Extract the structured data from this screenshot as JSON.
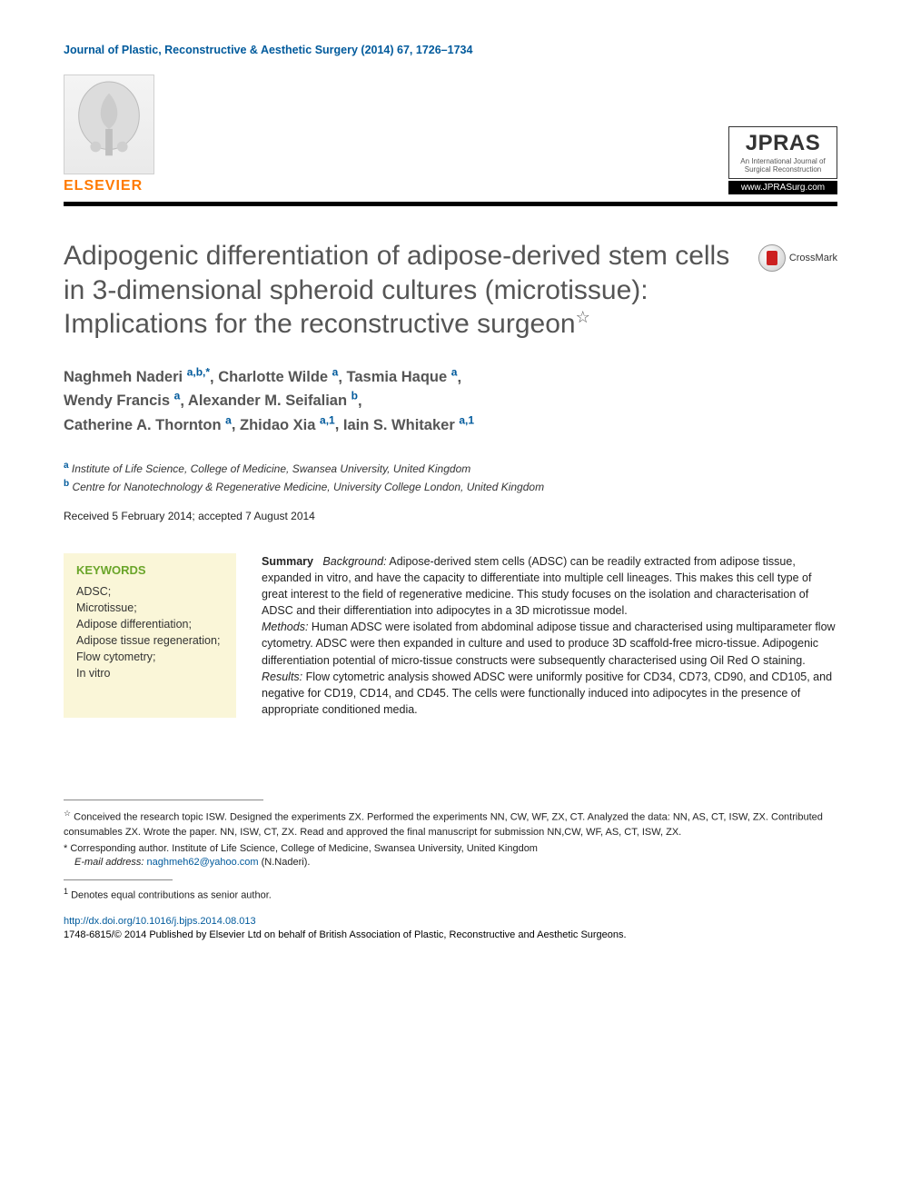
{
  "running_head": "Journal of Plastic, Reconstructive & Aesthetic Surgery (2014) 67, 1726–1734",
  "publisher_logo_text": "ELSEVIER",
  "journal_logo": {
    "title": "JPRAS",
    "subtitle1": "An International Journal of",
    "subtitle2": "Surgical Reconstruction",
    "url": "www.JPRASurg.com"
  },
  "crossmark_label": "CrossMark",
  "article_title": "Adipogenic differentiation of adipose-derived stem cells in 3-dimensional spheroid cultures (microtissue): Implications for the reconstructive surgeon",
  "title_note_symbol": "☆",
  "authors": [
    {
      "name": "Naghmeh Naderi",
      "marks": "a,b,*"
    },
    {
      "name": "Charlotte Wilde",
      "marks": "a"
    },
    {
      "name": "Tasmia Haque",
      "marks": "a"
    },
    {
      "name": "Wendy Francis",
      "marks": "a"
    },
    {
      "name": "Alexander M. Seifalian",
      "marks": "b"
    },
    {
      "name": "Catherine A. Thornton",
      "marks": "a"
    },
    {
      "name": "Zhidao Xia",
      "marks": "a,1"
    },
    {
      "name": "Iain S. Whitaker",
      "marks": "a,1"
    }
  ],
  "affiliations": [
    {
      "label": "a",
      "text": "Institute of Life Science, College of Medicine, Swansea University, United Kingdom"
    },
    {
      "label": "b",
      "text": "Centre for Nanotechnology & Regenerative Medicine, University College London, United Kingdom"
    }
  ],
  "dates": "Received 5 February 2014; accepted 7 August 2014",
  "keywords": {
    "heading": "KEYWORDS",
    "items": "ADSC;\nMicrotissue;\nAdipose differentiation;\nAdipose tissue regeneration;\nFlow cytometry;\nIn vitro"
  },
  "abstract": {
    "summary_label": "Summary",
    "background_label": "Background:",
    "background_text": " Adipose-derived stem cells (ADSC) can be readily extracted from adipose tissue, expanded in vitro, and have the capacity to differentiate into multiple cell lineages. This makes this cell type of great interest to the field of regenerative medicine. This study focuses on the isolation and characterisation of ADSC and their differentiation into adipocytes in a 3D microtissue model.",
    "methods_label": "Methods:",
    "methods_text": " Human ADSC were isolated from abdominal adipose tissue and characterised using multiparameter flow cytometry. ADSC were then expanded in culture and used to produce 3D scaffold-free micro-tissue. Adipogenic differentiation potential of micro-tissue constructs were subsequently characterised using Oil Red O staining.",
    "results_label": "Results:",
    "results_text": " Flow cytometric analysis showed ADSC were uniformly positive for CD34, CD73, CD90, and CD105, and negative for CD19, CD14, and CD45. The cells were functionally induced into adipocytes in the presence of appropriate conditioned media."
  },
  "footnotes": {
    "star": "Conceived the research topic ISW. Designed the experiments ZX. Performed the experiments NN, CW, WF, ZX, CT. Analyzed the data: NN, AS, CT, ISW, ZX. Contributed consumables ZX. Wrote the paper. NN, ISW, CT, ZX. Read and approved the final manuscript for submission NN,CW, WF, AS, CT, ISW, ZX.",
    "corr_label": "* Corresponding author. Institute of Life Science, College of Medicine, Swansea University, United Kingdom",
    "email_label": "E-mail address:",
    "email": "naghmeh62@yahoo.com",
    "email_suffix": " (N.Naderi).",
    "note1": "Denotes equal contributions as senior author."
  },
  "doi": {
    "url": "http://dx.doi.org/10.1016/j.bjps.2014.08.013",
    "copyright": "1748-6815/© 2014 Published by Elsevier Ltd on behalf of British Association of Plastic, Reconstructive and Aesthetic Surgeons."
  },
  "colors": {
    "link": "#005a9c",
    "title_gray": "#555555",
    "kw_bg": "#faf6d8",
    "kw_head": "#6aa52a",
    "elsevier_orange": "#ff7a00"
  }
}
